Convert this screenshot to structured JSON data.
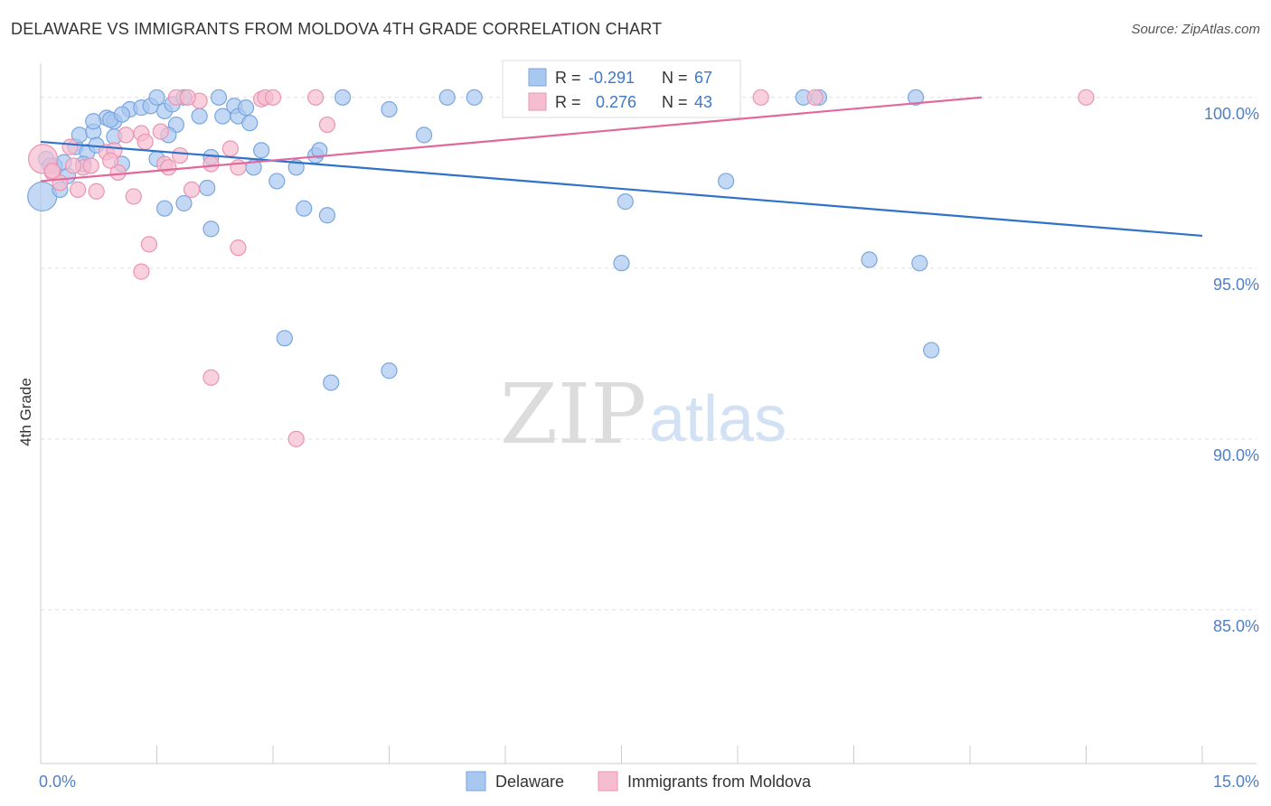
{
  "title": "DELAWARE VS IMMIGRANTS FROM MOLDOVA 4TH GRADE CORRELATION CHART",
  "source": "Source: ZipAtlas.com",
  "watermark": {
    "zip": "ZIP",
    "atlas": "atlas"
  },
  "colors": {
    "blue_fill": "#a9c8ef",
    "blue_stroke": "#7aa6df",
    "blue_line": "#2f72c8",
    "pink_fill": "#f6bdd0",
    "pink_stroke": "#ec93b2",
    "pink_line": "#e0689a",
    "tick_text": "#4f7fc9",
    "grid": "#dddddd"
  },
  "stats_legend": [
    {
      "r_label": "R =",
      "r_value": "-0.291",
      "n_label": "N =",
      "n_value": "67",
      "series": "Delaware"
    },
    {
      "r_label": "R =",
      "r_value": "0.276",
      "n_label": "N =",
      "n_value": "43",
      "series": "Immigrants from Moldova"
    }
  ],
  "chart_data": {
    "type": "scatter",
    "title": "DELAWARE VS IMMIGRANTS FROM MOLDOVA 4TH GRADE CORRELATION CHART",
    "xlabel": "",
    "ylabel": "4th Grade",
    "xlim": [
      0,
      15
    ],
    "ylim": [
      80.5,
      101.0
    ],
    "x_tick_labels": [
      {
        "value": 0,
        "label": "0.0%"
      },
      {
        "value": 15,
        "label": "15.0%"
      }
    ],
    "y_tick_labels": [
      {
        "value": 100,
        "label": "100.0%"
      },
      {
        "value": 95,
        "label": "95.0%"
      },
      {
        "value": 90,
        "label": "90.0%"
      },
      {
        "value": 85,
        "label": "85.0%"
      }
    ],
    "x_minor_ticks": [
      0,
      1.5,
      3,
      4.5,
      6,
      7.5,
      9,
      10.5,
      12,
      13.5,
      15
    ],
    "grid": true,
    "legend_position": "bottom-center",
    "series": [
      {
        "name": "Delaware",
        "color": "#a9c8ef",
        "trend": {
          "x": [
            0,
            15
          ],
          "y": [
            98.7,
            95.95
          ]
        },
        "points": [
          {
            "x": 0.07,
            "y": 98.2
          },
          {
            "x": 0.18,
            "y": 98.0
          },
          {
            "x": 0.3,
            "y": 98.1
          },
          {
            "x": 0.45,
            "y": 98.55
          },
          {
            "x": 0.6,
            "y": 98.4
          },
          {
            "x": 0.02,
            "y": 97.1,
            "big": true
          },
          {
            "x": 0.25,
            "y": 97.3
          },
          {
            "x": 0.12,
            "y": 98.0
          },
          {
            "x": 0.35,
            "y": 97.7
          },
          {
            "x": 0.5,
            "y": 98.9
          },
          {
            "x": 0.68,
            "y": 99.0
          },
          {
            "x": 0.85,
            "y": 99.4
          },
          {
            "x": 0.68,
            "y": 99.3
          },
          {
            "x": 0.95,
            "y": 99.3
          },
          {
            "x": 1.15,
            "y": 99.65
          },
          {
            "x": 1.3,
            "y": 99.7
          },
          {
            "x": 1.42,
            "y": 99.75
          },
          {
            "x": 1.5,
            "y": 100.0
          },
          {
            "x": 1.6,
            "y": 99.6
          },
          {
            "x": 1.7,
            "y": 99.8
          },
          {
            "x": 1.85,
            "y": 100.0
          },
          {
            "x": 1.75,
            "y": 99.2
          },
          {
            "x": 1.65,
            "y": 98.9
          },
          {
            "x": 2.05,
            "y": 99.45
          },
          {
            "x": 2.3,
            "y": 100.0
          },
          {
            "x": 2.35,
            "y": 99.45
          },
          {
            "x": 2.5,
            "y": 99.75
          },
          {
            "x": 2.55,
            "y": 99.45
          },
          {
            "x": 2.65,
            "y": 99.7
          },
          {
            "x": 2.7,
            "y": 99.25
          },
          {
            "x": 2.85,
            "y": 98.45
          },
          {
            "x": 2.75,
            "y": 97.95
          },
          {
            "x": 1.5,
            "y": 98.2
          },
          {
            "x": 1.05,
            "y": 98.05
          },
          {
            "x": 2.2,
            "y": 98.25
          },
          {
            "x": 2.15,
            "y": 97.35
          },
          {
            "x": 1.85,
            "y": 96.9
          },
          {
            "x": 1.6,
            "y": 96.75
          },
          {
            "x": 2.2,
            "y": 96.15
          },
          {
            "x": 3.05,
            "y": 97.55
          },
          {
            "x": 3.3,
            "y": 97.95
          },
          {
            "x": 3.4,
            "y": 96.75
          },
          {
            "x": 3.55,
            "y": 98.3
          },
          {
            "x": 3.6,
            "y": 98.45
          },
          {
            "x": 3.7,
            "y": 96.55
          },
          {
            "x": 3.9,
            "y": 100.0
          },
          {
            "x": 4.5,
            "y": 99.65
          },
          {
            "x": 4.95,
            "y": 98.9
          },
          {
            "x": 5.25,
            "y": 100.0
          },
          {
            "x": 5.6,
            "y": 100.0
          },
          {
            "x": 7.55,
            "y": 96.95
          },
          {
            "x": 7.5,
            "y": 95.15
          },
          {
            "x": 8.85,
            "y": 97.55
          },
          {
            "x": 9.85,
            "y": 100.0
          },
          {
            "x": 10.05,
            "y": 100.0
          },
          {
            "x": 11.3,
            "y": 100.0
          },
          {
            "x": 10.7,
            "y": 95.25
          },
          {
            "x": 11.35,
            "y": 95.15
          },
          {
            "x": 11.5,
            "y": 92.6
          },
          {
            "x": 3.15,
            "y": 92.95
          },
          {
            "x": 3.75,
            "y": 91.65
          },
          {
            "x": 4.5,
            "y": 92.0
          },
          {
            "x": 0.95,
            "y": 98.85
          },
          {
            "x": 0.9,
            "y": 99.35
          },
          {
            "x": 1.05,
            "y": 99.5
          },
          {
            "x": 0.72,
            "y": 98.6
          },
          {
            "x": 0.55,
            "y": 98.05
          }
        ]
      },
      {
        "name": "Immigrants from Moldova",
        "color": "#f6bdd0",
        "trend": {
          "x": [
            0,
            12.15
          ],
          "y": [
            97.55,
            100.0
          ]
        },
        "points": [
          {
            "x": 0.03,
            "y": 98.2,
            "big": true
          },
          {
            "x": 0.15,
            "y": 97.8
          },
          {
            "x": 0.25,
            "y": 97.5
          },
          {
            "x": 0.38,
            "y": 98.55
          },
          {
            "x": 0.48,
            "y": 97.3
          },
          {
            "x": 0.55,
            "y": 97.95
          },
          {
            "x": 0.72,
            "y": 97.25
          },
          {
            "x": 0.85,
            "y": 98.4
          },
          {
            "x": 1.0,
            "y": 97.8
          },
          {
            "x": 1.1,
            "y": 98.9
          },
          {
            "x": 1.2,
            "y": 97.1
          },
          {
            "x": 1.3,
            "y": 98.95
          },
          {
            "x": 1.35,
            "y": 98.7
          },
          {
            "x": 1.55,
            "y": 99.0
          },
          {
            "x": 1.6,
            "y": 98.05
          },
          {
            "x": 1.65,
            "y": 97.95
          },
          {
            "x": 1.75,
            "y": 100.0
          },
          {
            "x": 1.8,
            "y": 98.3
          },
          {
            "x": 1.95,
            "y": 97.3
          },
          {
            "x": 2.05,
            "y": 99.9
          },
          {
            "x": 2.2,
            "y": 98.05
          },
          {
            "x": 2.45,
            "y": 98.5
          },
          {
            "x": 2.55,
            "y": 97.95
          },
          {
            "x": 2.85,
            "y": 99.95
          },
          {
            "x": 2.9,
            "y": 100.0
          },
          {
            "x": 3.0,
            "y": 100.0
          },
          {
            "x": 3.55,
            "y": 100.0
          },
          {
            "x": 3.7,
            "y": 99.2
          },
          {
            "x": 1.4,
            "y": 95.7
          },
          {
            "x": 1.3,
            "y": 94.9
          },
          {
            "x": 2.55,
            "y": 95.6
          },
          {
            "x": 2.2,
            "y": 91.8
          },
          {
            "x": 3.3,
            "y": 90.0
          },
          {
            "x": 0.15,
            "y": 97.85
          },
          {
            "x": 0.42,
            "y": 98.0
          },
          {
            "x": 0.65,
            "y": 98.0
          },
          {
            "x": 0.95,
            "y": 98.45
          },
          {
            "x": 1.9,
            "y": 100.0
          },
          {
            "x": 8.35,
            "y": 99.9
          },
          {
            "x": 9.3,
            "y": 100.0
          },
          {
            "x": 10.0,
            "y": 100.0
          },
          {
            "x": 13.5,
            "y": 100.0
          },
          {
            "x": 0.9,
            "y": 98.15
          }
        ]
      }
    ]
  }
}
